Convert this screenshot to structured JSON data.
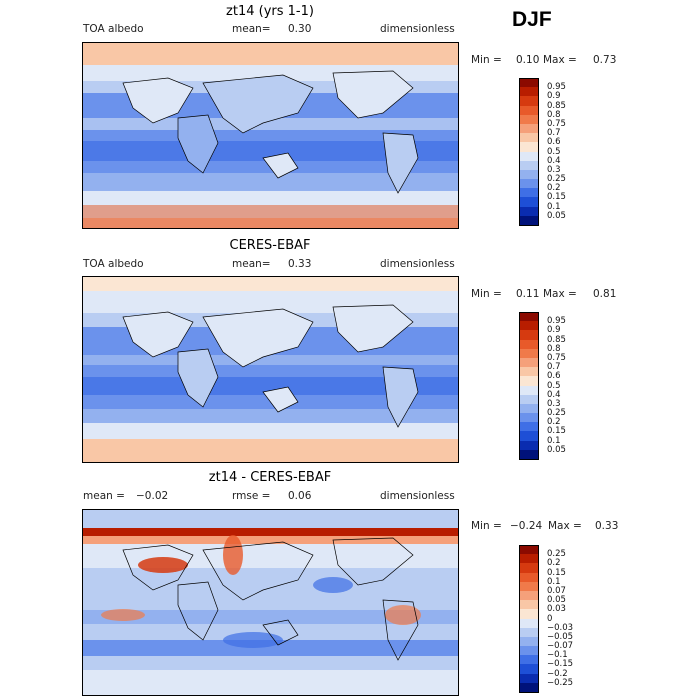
{
  "season": "DJF",
  "panels": [
    {
      "id": "model",
      "title": "zt14 (yrs 1-1)",
      "left_label": "TOA albedo",
      "mean_label": "mean=",
      "mean_value": "0.30",
      "units": "dimensionless",
      "min_label": "Min =",
      "min_value": "0.10",
      "max_label": "Max =",
      "max_value": "0.73",
      "colorbar_labels": [
        "0.95",
        "0.9",
        "0.85",
        "0.8",
        "0.75",
        "0.7",
        "0.6",
        "0.5",
        "0.4",
        "0.3",
        "0.25",
        "0.2",
        "0.15",
        "0.1",
        "0.05"
      ],
      "colorbar_colors": [
        "#8b0a00",
        "#b81d00",
        "#d63a10",
        "#e85a2a",
        "#f07a4a",
        "#f5a07a",
        "#f9c7a6",
        "#fbe6d3",
        "#dfe8f7",
        "#b9cdf2",
        "#93b1ef",
        "#6b92ec",
        "#3f6fe6",
        "#1e4fd6",
        "#0a2cb0",
        "#00127a"
      ]
    },
    {
      "id": "obs",
      "title": "CERES-EBAF",
      "left_label": "TOA albedo",
      "mean_label": "mean=",
      "mean_value": "0.33",
      "units": "dimensionless",
      "min_label": "Min =",
      "min_value": "0.11",
      "max_label": "Max =",
      "max_value": "0.81",
      "colorbar_labels": [
        "0.95",
        "0.9",
        "0.85",
        "0.8",
        "0.75",
        "0.7",
        "0.6",
        "0.5",
        "0.4",
        "0.3",
        "0.25",
        "0.2",
        "0.15",
        "0.1",
        "0.05"
      ],
      "colorbar_colors": [
        "#8b0a00",
        "#b81d00",
        "#d63a10",
        "#e85a2a",
        "#f07a4a",
        "#f5a07a",
        "#f9c7a6",
        "#fbe6d3",
        "#dfe8f7",
        "#b9cdf2",
        "#93b1ef",
        "#6b92ec",
        "#3f6fe6",
        "#1e4fd6",
        "#0a2cb0",
        "#00127a"
      ]
    },
    {
      "id": "diff",
      "title": "zt14 - CERES-EBAF",
      "left_label": "mean =",
      "mean_value": "−0.02",
      "mean_label": "rmse =",
      "rmse_value": "0.06",
      "units": "dimensionless",
      "min_label": "Min =",
      "min_value": "−0.24",
      "max_label": "Max =",
      "max_value": "0.33",
      "colorbar_labels": [
        "0.25",
        "0.2",
        "0.15",
        "0.1",
        "0.07",
        "0.05",
        "0.03",
        "0",
        "−0.03",
        "−0.05",
        "−0.07",
        "−0.1",
        "−0.15",
        "−0.2",
        "−0.25"
      ],
      "colorbar_colors": [
        "#8b0a00",
        "#b81d00",
        "#d63a10",
        "#e85a2a",
        "#f07a4a",
        "#f5a07a",
        "#f9c7a6",
        "#fbe6d3",
        "#dfe8f7",
        "#b9cdf2",
        "#93b1ef",
        "#6b92ec",
        "#3f6fe6",
        "#1e4fd6",
        "#0a2cb0",
        "#00127a"
      ]
    }
  ]
}
